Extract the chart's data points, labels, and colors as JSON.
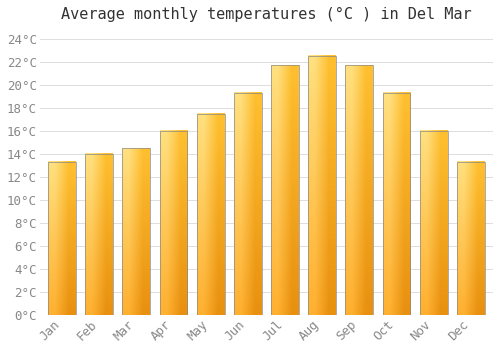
{
  "title": "Average monthly temperatures (°C ) in Del Mar",
  "months": [
    "Jan",
    "Feb",
    "Mar",
    "Apr",
    "May",
    "Jun",
    "Jul",
    "Aug",
    "Sep",
    "Oct",
    "Nov",
    "Dec"
  ],
  "values": [
    13.3,
    14.0,
    14.5,
    16.0,
    17.5,
    19.3,
    21.7,
    22.5,
    21.7,
    19.3,
    16.0,
    13.3
  ],
  "bar_color_bottom": "#F5A623",
  "bar_color_top": "#FFD580",
  "bar_edge_color": "#888888",
  "background_color": "#FFFFFF",
  "grid_color": "#DDDDDD",
  "ylim": [
    0,
    25
  ],
  "yticks": [
    0,
    2,
    4,
    6,
    8,
    10,
    12,
    14,
    16,
    18,
    20,
    22,
    24
  ],
  "title_fontsize": 11,
  "tick_fontsize": 9,
  "tick_font_color": "#888888",
  "title_color": "#333333",
  "font_family": "monospace"
}
